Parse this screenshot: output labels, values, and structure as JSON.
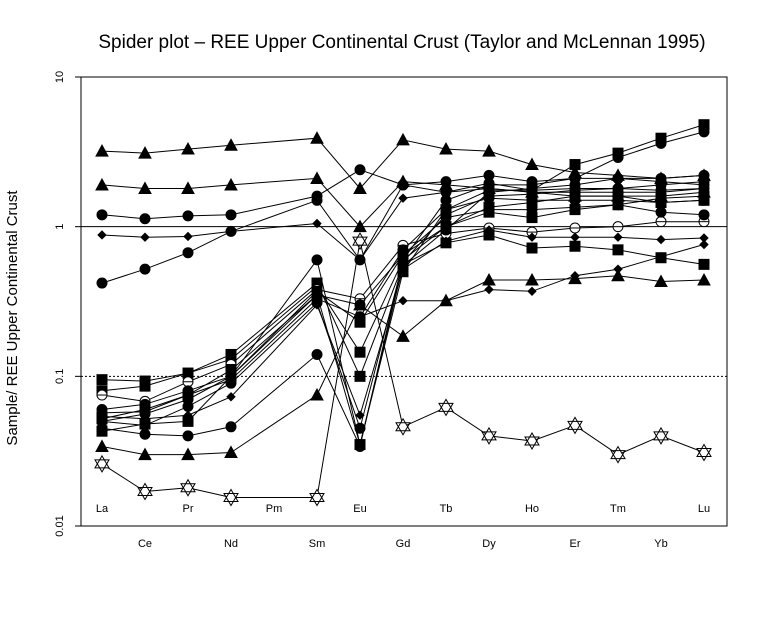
{
  "chart_data": {
    "type": "line",
    "title": "Spider plot –  REE Upper Continental Crust (Taylor  and  McLennan 1995)",
    "xlabel": "",
    "ylabel": "Sample/ REE Upper Continental Crust",
    "yscale": "log",
    "ylim": [
      0.01,
      10
    ],
    "yticks": [
      "0.01",
      "0.1",
      "1",
      "10"
    ],
    "categories": [
      "La",
      "Ce",
      "Pr",
      "Nd",
      "Pm",
      "Sm",
      "Eu",
      "Gd",
      "Tb",
      "Dy",
      "Ho",
      "Er",
      "Tm",
      "Yb",
      "Lu"
    ],
    "reference_lines": [
      {
        "value": 1,
        "style": "solid"
      },
      {
        "value": 0.1,
        "style": "dotted"
      }
    ],
    "grid": false,
    "legend": "none",
    "series": [
      {
        "marker": "triangle",
        "values": [
          3.2,
          3.1,
          3.3,
          3.5,
          null,
          3.9,
          1.8,
          3.8,
          3.3,
          3.2,
          2.6,
          2.3,
          2.2,
          2.1,
          2.2
        ]
      },
      {
        "marker": "triangle",
        "values": [
          1.9,
          1.8,
          1.8,
          1.9,
          null,
          2.1,
          1.0,
          2.0,
          1.9,
          1.8,
          1.7,
          1.6,
          1.6,
          1.6,
          1.7
        ]
      },
      {
        "marker": "circle",
        "values": [
          1.2,
          1.13,
          1.18,
          1.2,
          null,
          1.6,
          2.4,
          1.9,
          2.0,
          2.2,
          2.0,
          2.1,
          2.1,
          2.1,
          2.2
        ]
      },
      {
        "marker": "diamond",
        "values": [
          0.88,
          0.85,
          0.86,
          0.93,
          null,
          1.05,
          0.6,
          1.55,
          1.7,
          1.8,
          1.7,
          1.7,
          1.7,
          1.7,
          1.8
        ]
      },
      {
        "marker": "circle",
        "values": [
          0.42,
          0.52,
          0.67,
          0.93,
          null,
          1.5,
          0.6,
          1.9,
          1.7,
          1.95,
          1.75,
          1.8,
          1.8,
          1.75,
          1.8
        ]
      },
      {
        "marker": "square",
        "values": [
          0.095,
          0.093,
          0.105,
          0.13,
          null,
          0.4,
          0.145,
          0.6,
          1.0,
          1.35,
          1.45,
          1.6,
          1.6,
          1.45,
          1.5
        ]
      },
      {
        "marker": "square",
        "values": [
          0.08,
          0.086,
          0.105,
          0.14,
          null,
          0.42,
          0.1,
          0.56,
          0.78,
          0.88,
          0.72,
          0.74,
          0.7,
          0.62,
          0.56
        ]
      },
      {
        "marker": "circle-open",
        "values": [
          0.075,
          0.068,
          0.092,
          0.12,
          null,
          0.38,
          0.33,
          0.75,
          0.9,
          0.98,
          0.92,
          0.98,
          1.0,
          1.08,
          1.08
        ]
      },
      {
        "marker": "circle",
        "values": [
          0.06,
          0.065,
          0.08,
          0.1,
          null,
          0.35,
          0.3,
          0.65,
          1.15,
          1.3,
          1.3,
          1.35,
          1.4,
          1.25,
          1.2
        ]
      },
      {
        "marker": "circle",
        "values": [
          0.057,
          0.058,
          0.075,
          0.095,
          null,
          0.33,
          0.25,
          0.7,
          1.3,
          1.55,
          1.5,
          1.5,
          1.5,
          1.45,
          1.5
        ]
      },
      {
        "marker": "circle",
        "values": [
          0.05,
          0.047,
          0.063,
          0.09,
          null,
          0.31,
          0.045,
          0.58,
          1.2,
          1.6,
          1.65,
          1.75,
          1.8,
          1.9,
          2.0
        ]
      },
      {
        "marker": "diamond",
        "values": [
          0.054,
          0.052,
          0.055,
          0.073,
          null,
          0.3,
          0.055,
          0.52,
          0.8,
          0.95,
          0.85,
          0.85,
          0.85,
          0.82,
          0.84
        ]
      },
      {
        "marker": "square",
        "values": [
          0.043,
          0.048,
          0.05,
          0.1,
          null,
          0.37,
          0.23,
          0.65,
          1.0,
          1.25,
          1.15,
          1.3,
          1.4,
          1.55,
          1.6
        ]
      },
      {
        "marker": "circle",
        "values": [
          0.045,
          0.041,
          0.04,
          0.046,
          null,
          0.14,
          0.034,
          0.6,
          1.5,
          1.9,
          1.9,
          2.1,
          2.9,
          3.6,
          4.3
        ]
      },
      {
        "marker": "circle",
        "values": [
          0.05,
          0.056,
          0.07,
          0.1,
          null,
          0.6,
          0.035,
          0.55,
          0.95,
          1.7,
          1.8,
          1.9,
          2.1,
          2.0,
          1.9
        ]
      },
      {
        "marker": "square",
        "values": [
          0.052,
          0.06,
          0.075,
          0.11,
          null,
          0.35,
          0.035,
          0.5,
          1.3,
          1.75,
          1.75,
          2.6,
          3.1,
          3.9,
          4.8
        ]
      },
      {
        "marker": "triangle",
        "values": [
          0.034,
          0.03,
          0.03,
          0.031,
          null,
          0.075,
          0.3,
          0.185,
          0.32,
          0.44,
          0.44,
          0.45,
          0.47,
          0.43,
          0.44
        ]
      },
      {
        "marker": "diamond",
        "values": [
          null,
          null,
          null,
          null,
          null,
          null,
          0.25,
          0.32,
          0.32,
          0.38,
          0.37,
          0.47,
          0.52,
          0.63,
          0.76
        ]
      },
      {
        "marker": "star-of-david",
        "values": [
          0.026,
          0.017,
          0.018,
          0.0155,
          null,
          0.0155,
          0.8,
          0.046,
          0.062,
          0.04,
          0.037,
          0.047,
          0.03,
          0.04,
          0.031
        ]
      }
    ]
  }
}
